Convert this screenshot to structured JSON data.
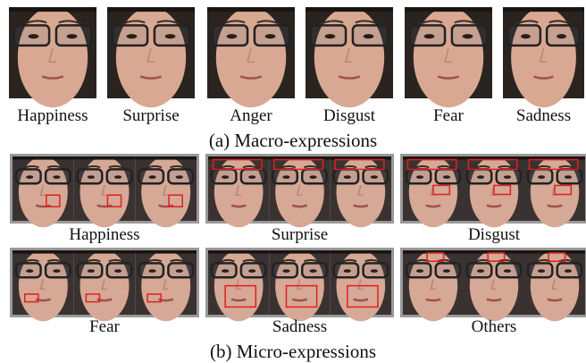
{
  "macro": {
    "labels": [
      "Happiness",
      "Surprise",
      "Anger",
      "Disgust",
      "Fear",
      "Sadness"
    ],
    "caption": "(a) Macro-expressions"
  },
  "micro": {
    "labels": [
      "Happiness",
      "Surprise",
      "Disgust",
      "Fear",
      "Sadness",
      "Others"
    ],
    "caption": "(b) Micro-expressions"
  }
}
